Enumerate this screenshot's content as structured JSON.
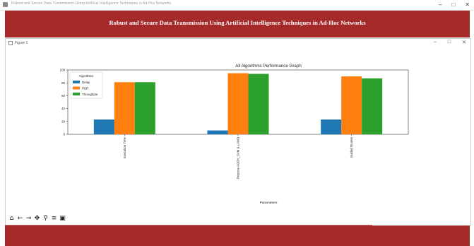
{
  "window": {
    "title": "Robust and Secure Data Transmission Using Artificial Intelligence Techniques in Ad-Hoc Networks",
    "controls": [
      "–",
      "□",
      "✕"
    ]
  },
  "banner": {
    "title": "Robust and Secure Data Transmission Using Artificial Intelligence Techniques in Ad-Hoc Networks",
    "color": "#a52a2a"
  },
  "figure_window": {
    "title": "Figure 1",
    "controls": [
      "–",
      "□",
      "✕"
    ]
  },
  "toolbar": {
    "icons": [
      "home-icon",
      "back-arrow-icon",
      "forward-arrow-icon",
      "pan-icon",
      "zoom-icon",
      "configure-subplots-icon",
      "save-icon"
    ],
    "glyphs": [
      "⌂",
      "←",
      "→",
      "✥",
      "⚲",
      "≡",
      "▣"
    ]
  },
  "chart_data": {
    "type": "bar",
    "title": "All Algorithms Performance Graph",
    "xlabel": "Parameters",
    "ylabel": "",
    "categories": [
      "Execution Time",
      "Propose AODV_SVM & LAMD",
      "Guided Routes"
    ],
    "series": [
      {
        "name": "Delay",
        "color": "#1f77b4",
        "values": [
          23,
          6,
          23
        ]
      },
      {
        "name": "PDR",
        "color": "#ff7f0e",
        "values": [
          81,
          95,
          90
        ]
      },
      {
        "name": "Throughput",
        "color": "#2ca02c",
        "values": [
          81,
          94,
          87
        ]
      }
    ],
    "legend_title": "Algorithms",
    "legend_position": "top-left",
    "ylim": [
      0,
      100
    ],
    "yticks": [
      0,
      20,
      40,
      60,
      80,
      100
    ],
    "grid": false
  }
}
